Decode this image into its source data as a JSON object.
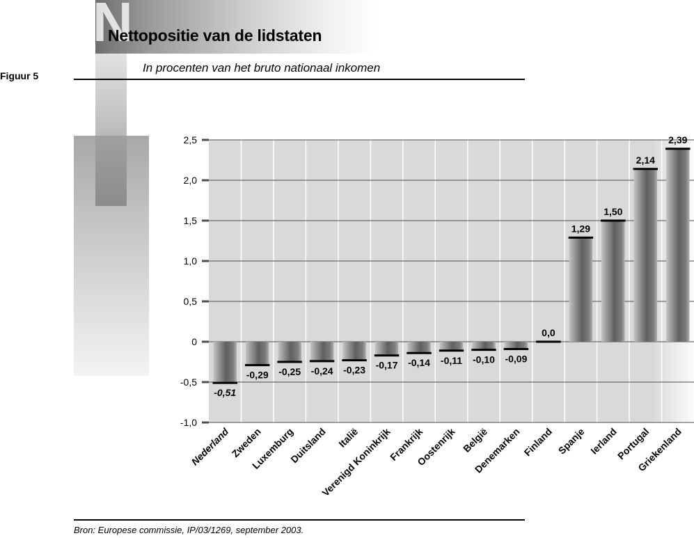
{
  "header": {
    "deco_letter": "N",
    "title": "Nettopositie van de lidstaten",
    "figure_label": "Figuur 5",
    "subtitle": "In procenten van het bruto nationaal inkomen"
  },
  "footer": {
    "source": "Bron: Europese commissie, IP/03/1269, september 2003."
  },
  "chart_data": {
    "type": "bar",
    "title": "Nettopositie van de lidstaten",
    "subtitle": "In procenten van het bruto nationaal inkomen",
    "xlabel": "",
    "ylabel": "",
    "ylim": [
      -1.0,
      2.5
    ],
    "yticks": [
      2.5,
      2.0,
      1.5,
      1.0,
      0.5,
      0,
      -0.5,
      -1.0
    ],
    "ytick_labels": [
      "2,5",
      "2,0",
      "1,5",
      "1,0",
      "0,5",
      "0",
      "-0,5",
      "-1,0"
    ],
    "grid": true,
    "categories": [
      "Nederland",
      "Zweden",
      "Luxemburg",
      "Duitsland",
      "Italië",
      "Verenigd Koninkrijk",
      "Frankrijk",
      "Oostenrijk",
      "België",
      "Denemarken",
      "Finland",
      "Spanje",
      "Ierland",
      "Portugal",
      "Griekenland"
    ],
    "values": [
      -0.51,
      -0.29,
      -0.25,
      -0.24,
      -0.23,
      -0.17,
      -0.14,
      -0.11,
      -0.1,
      -0.09,
      0.0,
      1.29,
      1.5,
      2.14,
      2.39
    ],
    "value_labels": [
      "-0,51",
      "-0,29",
      "-0,25",
      "-0,24",
      "-0,23",
      "-0,17",
      "-0,14",
      "-0,11",
      "-0,10",
      "-0,09",
      "0,0",
      "1,29",
      "1,50",
      "2,14",
      "2,39"
    ],
    "highlight": "Nederland"
  },
  "colors": {
    "plot_background": "#d9d9d9",
    "gridline": "#ffffff",
    "bar_light": "#b8b8b8",
    "bar_dark": "#5a5a5a",
    "bar_cap": "#000000",
    "axis": "#4d4d4d"
  }
}
